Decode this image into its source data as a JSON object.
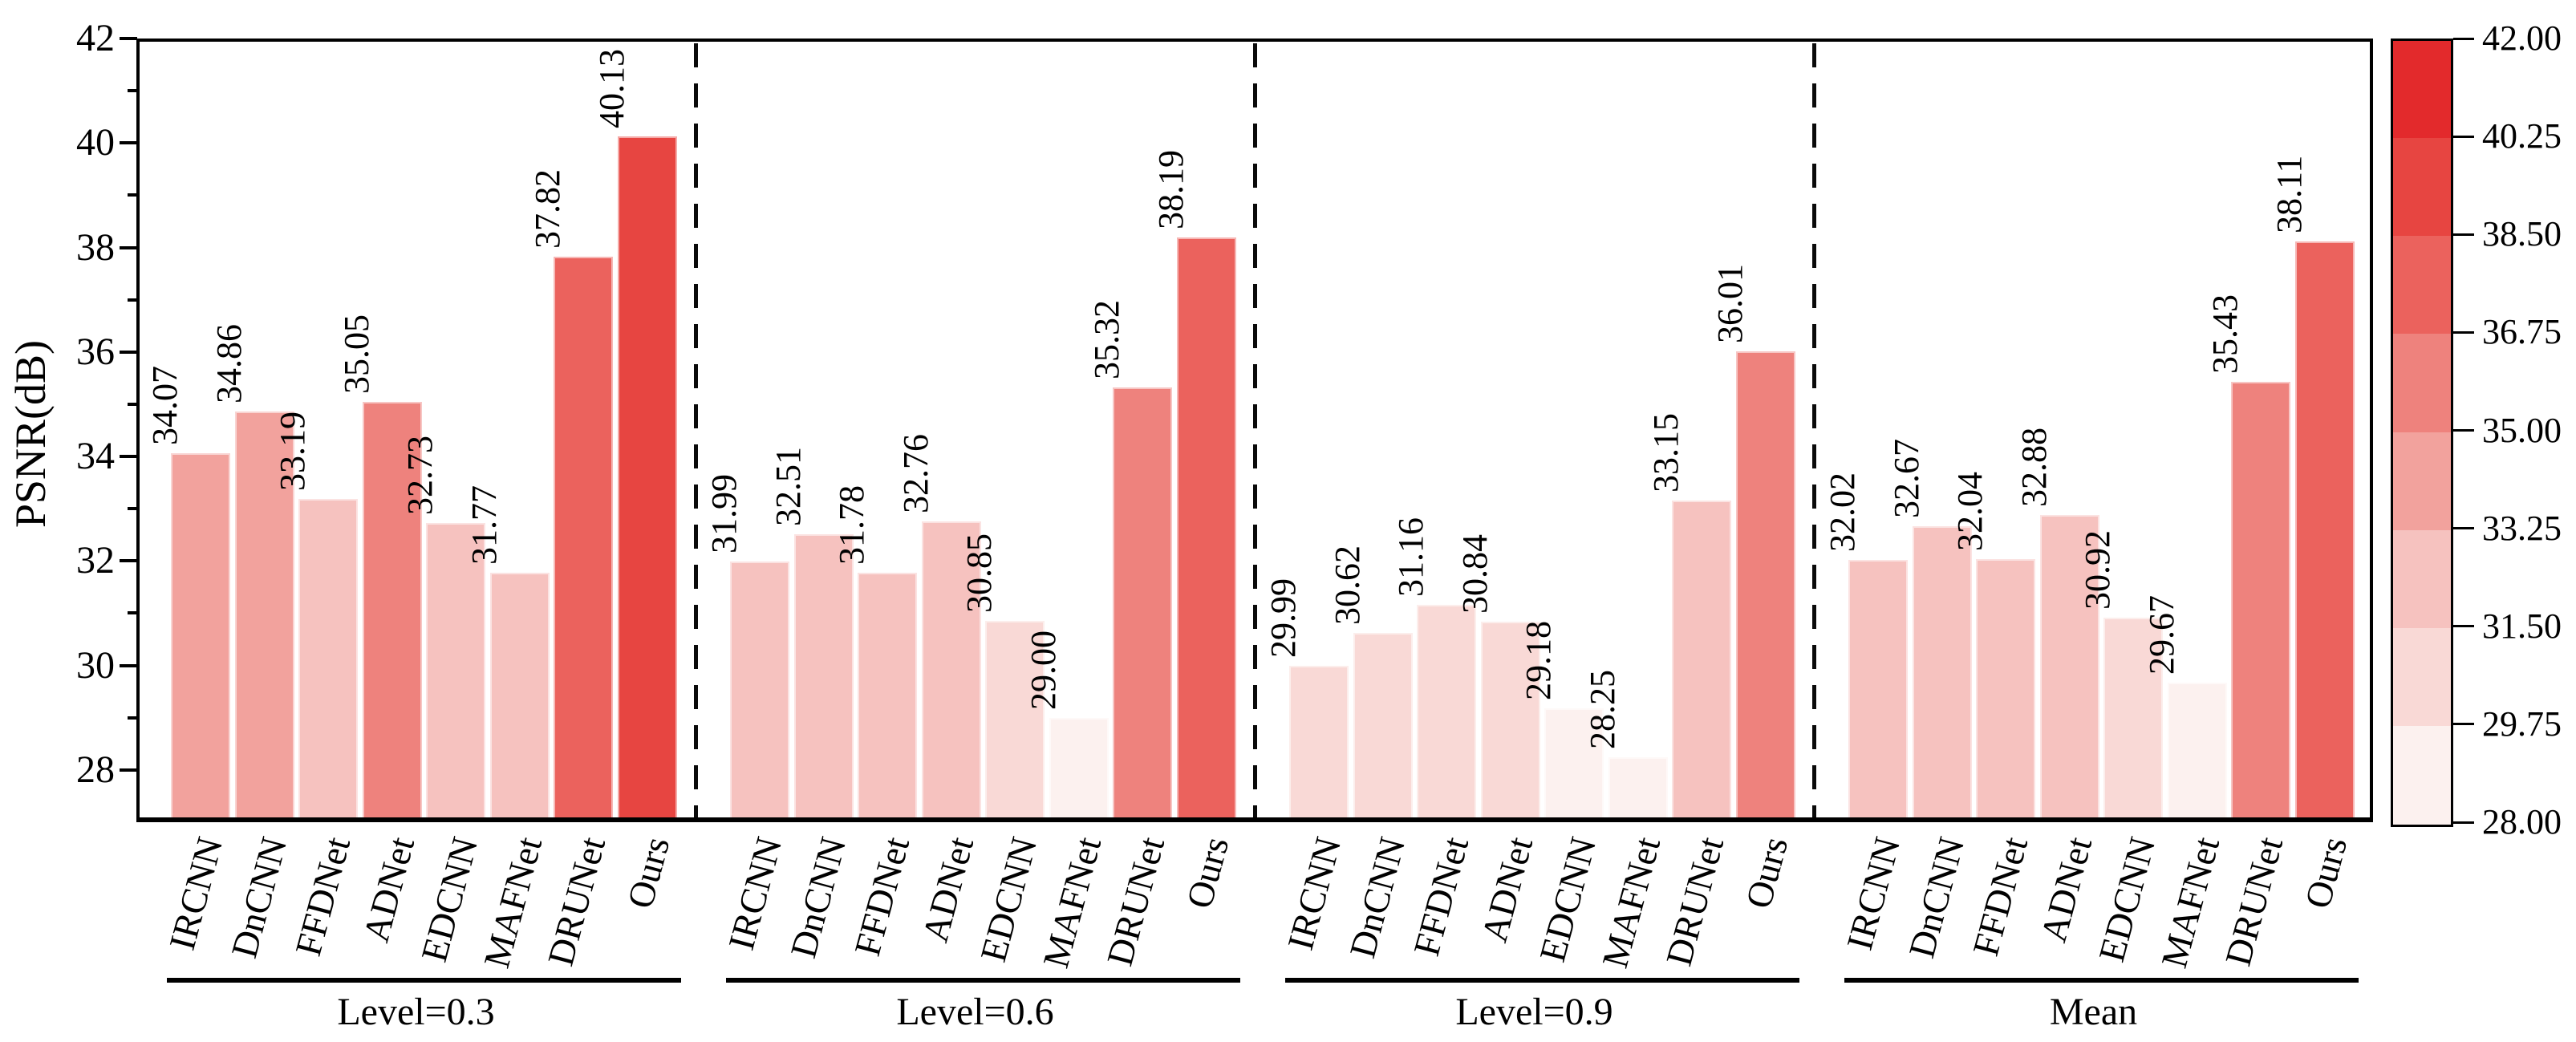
{
  "figure": {
    "ylabel": "PSNR(dB)",
    "background": "#ffffff"
  },
  "y_axis": {
    "min": 27,
    "max": 42,
    "major_ticks": [
      28,
      30,
      32,
      34,
      36,
      38,
      40,
      42
    ],
    "minor_ticks": [
      29,
      31,
      33,
      35,
      37,
      39,
      41
    ]
  },
  "colorbar": {
    "vmin": 28.0,
    "vmax": 42.0,
    "tick_labels_top_to_bottom": [
      "42.00",
      "40.25",
      "38.50",
      "36.75",
      "35.00",
      "33.25",
      "31.50",
      "29.75",
      "28.00"
    ]
  },
  "chart_data": {
    "type": "bar",
    "title": "",
    "xlabel": "",
    "ylabel": "PSNR(dB)",
    "ylim": [
      27,
      42
    ],
    "grid": false,
    "legend": "discrete colorbar on right, 8 bins from 28.00 to 42.00",
    "categories": [
      "IRCNN",
      "DnCNN",
      "FFDNet",
      "ADNet",
      "EDCNN",
      "MAFNet",
      "DRUNet",
      "Ours"
    ],
    "series": [
      {
        "name": "Level=0.3",
        "values": [
          34.07,
          34.86,
          33.19,
          35.05,
          32.73,
          31.77,
          37.82,
          40.13
        ]
      },
      {
        "name": "Level=0.6",
        "values": [
          31.99,
          32.51,
          31.78,
          32.76,
          30.85,
          29.0,
          35.32,
          38.19
        ]
      },
      {
        "name": "Level=0.9",
        "values": [
          29.99,
          30.62,
          31.16,
          30.84,
          29.18,
          28.25,
          33.15,
          36.01
        ]
      },
      {
        "name": "Mean",
        "values": [
          32.02,
          32.67,
          32.04,
          32.88,
          30.92,
          29.67,
          35.43,
          38.11
        ]
      }
    ],
    "colormap": {
      "bins": 8,
      "vmin": 28.0,
      "vmax": 42.0,
      "bin_width": 1.75,
      "palette_light_to_dark": [
        "#fcf1ef",
        "#f9d9d6",
        "#f6c2bf",
        "#f2a29d",
        "#ee827d",
        "#eb625d",
        "#e74541",
        "#e32a2c"
      ]
    }
  }
}
